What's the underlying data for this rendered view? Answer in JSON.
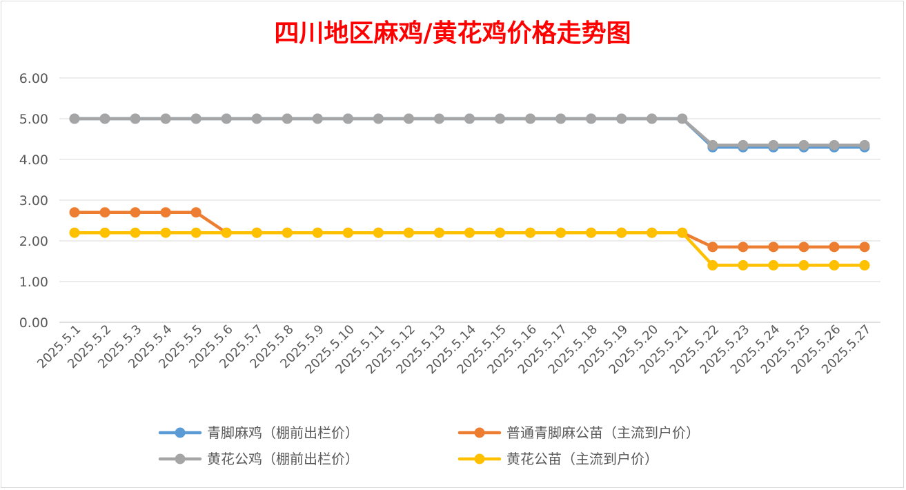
{
  "chart_data": {
    "type": "line",
    "title": "四川地区麻鸡/黄花鸡价格走势图",
    "categories": [
      "2025.5.1",
      "2025.5.2",
      "2025.5.3",
      "2025.5.4",
      "2025.5.5",
      "2025.5.6",
      "2025.5.7",
      "2025.5.8",
      "2025.5.9",
      "2025.5.10",
      "2025.5.11",
      "2025.5.12",
      "2025.5.13",
      "2025.5.14",
      "2025.5.15",
      "2025.5.16",
      "2025.5.17",
      "2025.5.18",
      "2025.5.19",
      "2025.5.20",
      "2025.5.21",
      "2025.5.22",
      "2025.5.23",
      "2025.5.24",
      "2025.5.25",
      "2025.5.26",
      "2025.5.27"
    ],
    "ylim": [
      0,
      6
    ],
    "yticks": [
      "0.00",
      "1.00",
      "2.00",
      "3.00",
      "4.00",
      "5.00",
      "6.00"
    ],
    "grid": true,
    "legend_position": "bottom",
    "series": [
      {
        "name": "青脚麻鸡（棚前出栏价）",
        "color": "#5b9bd5",
        "values": [
          5,
          5,
          5,
          5,
          5,
          5,
          5,
          5,
          5,
          5,
          5,
          5,
          5,
          5,
          5,
          5,
          5,
          5,
          5,
          5,
          5,
          4.3,
          4.3,
          4.3,
          4.3,
          4.3,
          4.3
        ]
      },
      {
        "name": "普通青脚麻公苗（主流到户价）",
        "color": "#ed7d31",
        "values": [
          2.7,
          2.7,
          2.7,
          2.7,
          2.7,
          2.2,
          2.2,
          2.2,
          2.2,
          2.2,
          2.2,
          2.2,
          2.2,
          2.2,
          2.2,
          2.2,
          2.2,
          2.2,
          2.2,
          2.2,
          2.2,
          1.85,
          1.85,
          1.85,
          1.85,
          1.85,
          1.85
        ]
      },
      {
        "name": "黄花公鸡（棚前出栏价）",
        "color": "#a5a5a5",
        "values": [
          5,
          5,
          5,
          5,
          5,
          5,
          5,
          5,
          5,
          5,
          5,
          5,
          5,
          5,
          5,
          5,
          5,
          5,
          5,
          5,
          5,
          4.35,
          4.35,
          4.35,
          4.35,
          4.35,
          4.35
        ]
      },
      {
        "name": "黄花公苗（主流到户价）",
        "color": "#ffc000",
        "values": [
          2.2,
          2.2,
          2.2,
          2.2,
          2.2,
          2.2,
          2.2,
          2.2,
          2.2,
          2.2,
          2.2,
          2.2,
          2.2,
          2.2,
          2.2,
          2.2,
          2.2,
          2.2,
          2.2,
          2.2,
          2.2,
          1.4,
          1.4,
          1.4,
          1.4,
          1.4,
          1.4
        ]
      }
    ]
  }
}
